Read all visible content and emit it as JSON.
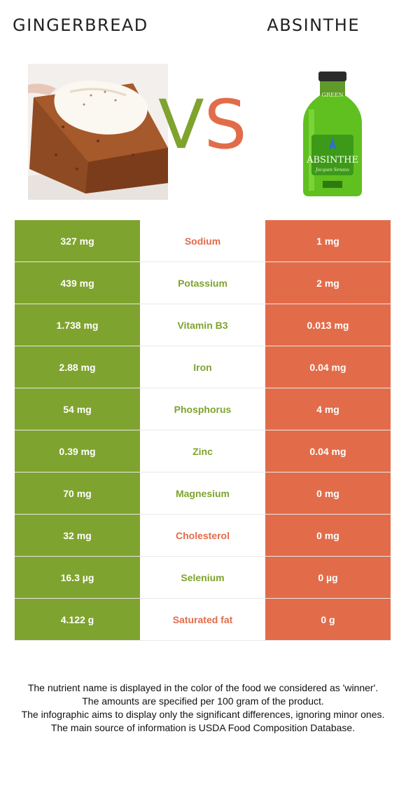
{
  "header": {
    "left_food": "GINGERBREAD",
    "vs_v": "V",
    "vs_s": "S",
    "right_food": "ABSINTHE"
  },
  "images": {
    "left": {
      "alt": "gingerbread-photo"
    },
    "right": {
      "label_text": "ABSINTHE",
      "label_green": "GREEN",
      "label_sub": "Jacques Senaux"
    }
  },
  "colors": {
    "left": "#7fa32f",
    "right": "#e26c4a"
  },
  "rows": [
    {
      "left": "327 mg",
      "nutrient": "Sodium",
      "right": "1 mg",
      "winner": "right"
    },
    {
      "left": "439 mg",
      "nutrient": "Potassium",
      "right": "2 mg",
      "winner": "left"
    },
    {
      "left": "1.738 mg",
      "nutrient": "Vitamin B3",
      "right": "0.013 mg",
      "winner": "left"
    },
    {
      "left": "2.88 mg",
      "nutrient": "Iron",
      "right": "0.04 mg",
      "winner": "left"
    },
    {
      "left": "54 mg",
      "nutrient": "Phosphorus",
      "right": "4 mg",
      "winner": "left"
    },
    {
      "left": "0.39 mg",
      "nutrient": "Zinc",
      "right": "0.04 mg",
      "winner": "left"
    },
    {
      "left": "70 mg",
      "nutrient": "Magnesium",
      "right": "0 mg",
      "winner": "left"
    },
    {
      "left": "32 mg",
      "nutrient": "Cholesterol",
      "right": "0 mg",
      "winner": "right"
    },
    {
      "left": "16.3 µg",
      "nutrient": "Selenium",
      "right": "0 µg",
      "winner": "left"
    },
    {
      "left": "4.122 g",
      "nutrient": "Saturated fat",
      "right": "0 g",
      "winner": "right"
    }
  ],
  "footer": {
    "line1": "The nutrient name is displayed in the color of the food we considered as 'winner'.",
    "line2": "The amounts are specified per 100 gram of the product.",
    "line3": "The infographic aims to display only the significant differences, ignoring minor ones.",
    "line4": "The main source of information is USDA Food Composition Database."
  }
}
